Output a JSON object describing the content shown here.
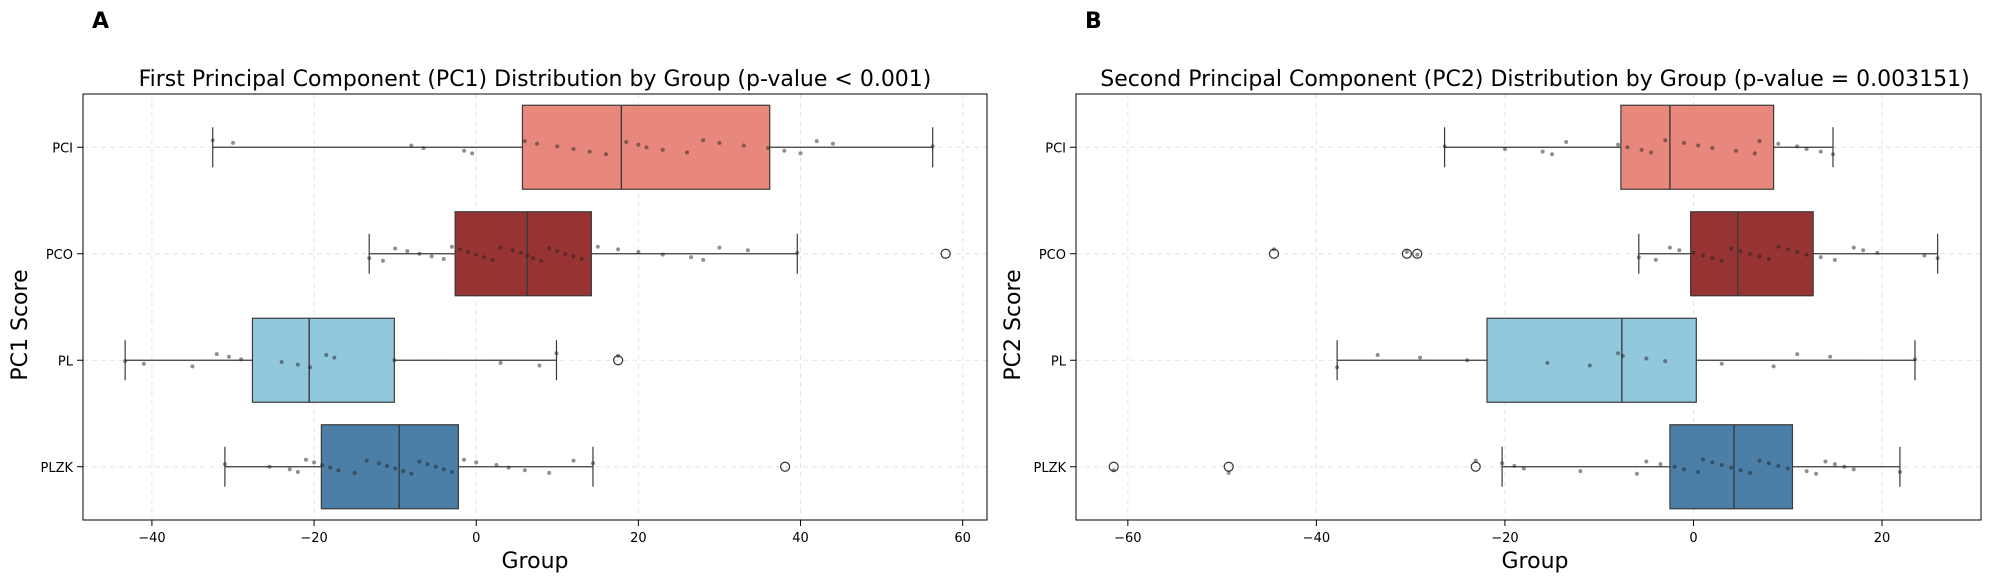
{
  "panels": [
    {
      "letter": "A",
      "chart_data": {
        "type": "box",
        "orientation": "horizontal",
        "title": "First Principal Component (PC1) Distribution by Group (p-value < 0.001)",
        "xlabel": "Group",
        "ylabel": "PC1 Score",
        "xlim": [
          -48.5,
          63
        ],
        "xticks": [
          -40,
          -20,
          0,
          20,
          40,
          60
        ],
        "xtick_labels": [
          "−40",
          "−20",
          "0",
          "20",
          "40",
          "60"
        ],
        "grid": true,
        "categories": [
          "PCI",
          "PCO",
          "PL",
          "PLZK"
        ],
        "colors": [
          "#e8887d",
          "#973333",
          "#92c8de",
          "#4b7fa8"
        ],
        "boxes": [
          {
            "group": "PCI",
            "whisker_low": -32.5,
            "q1": 5.7,
            "median": 17.9,
            "q3": 36.2,
            "whisker_high": 56.3,
            "outliers": []
          },
          {
            "group": "PCO",
            "whisker_low": -13.2,
            "q1": -2.6,
            "median": 6.3,
            "q3": 14.2,
            "whisker_high": 39.6,
            "outliers": [
              57.9
            ]
          },
          {
            "group": "PL",
            "whisker_low": -43.3,
            "q1": -27.6,
            "median": -20.6,
            "q3": -10.1,
            "whisker_high": 9.9,
            "outliers": [
              17.5
            ]
          },
          {
            "group": "PLZK",
            "whisker_low": -31.0,
            "q1": -19.1,
            "median": -9.5,
            "q3": -2.2,
            "whisker_high": 14.4,
            "outliers": [
              38.1
            ]
          }
        ],
        "points": [
          {
            "group": "PCI",
            "values": [
              -32.5,
              -30,
              -8,
              -6.5,
              -1.5,
              -0.5,
              6,
              7.5,
              10,
              12,
              14,
              16,
              18.5,
              20,
              21,
              23,
              26,
              28,
              30,
              33,
              36,
              38,
              40,
              42,
              44,
              56.3
            ]
          },
          {
            "group": "PCO",
            "values": [
              -13.2,
              -11.5,
              -10,
              -8.5,
              -7,
              -5.5,
              -4,
              -3,
              -2,
              -1,
              0,
              1,
              2,
              3,
              4.5,
              5.5,
              6.3,
              7,
              8,
              9,
              10,
              11,
              12,
              13,
              15,
              17.5,
              20,
              23,
              26.5,
              28,
              30,
              33.5,
              39.6
            ]
          },
          {
            "group": "PL",
            "values": [
              -43.3,
              -41,
              -35,
              -32,
              -30.5,
              -29,
              -24,
              -22,
              -20.5,
              -18.5,
              -17.5,
              -10.1,
              3,
              7.8,
              9.9,
              17.5
            ]
          },
          {
            "group": "PLZK",
            "values": [
              -31,
              -25.5,
              -23,
              -22,
              -21,
              -20,
              -19,
              -18,
              -17,
              -15,
              -13.5,
              -12,
              -11,
              -10,
              -9,
              -8,
              -7,
              -6,
              -5,
              -4,
              -3,
              -1.5,
              0,
              2.5,
              4,
              6,
              9,
              12,
              14.4
            ]
          }
        ]
      }
    },
    {
      "letter": "B",
      "chart_data": {
        "type": "box",
        "orientation": "horizontal",
        "title": "Second Principal Component (PC2) Distribution by Group (p-value = 0.003151)",
        "xlabel": "Group",
        "ylabel": "PC2 Score",
        "xlim": [
          -65.5,
          30.5
        ],
        "xticks": [
          -60,
          -40,
          -20,
          0,
          20
        ],
        "xtick_labels": [
          "−60",
          "−40",
          "−20",
          "0",
          "20"
        ],
        "grid": true,
        "categories": [
          "PCI",
          "PCO",
          "PL",
          "PLZK"
        ],
        "colors": [
          "#e8887d",
          "#973333",
          "#92c8de",
          "#4b7fa8"
        ],
        "boxes": [
          {
            "group": "PCI",
            "whisker_low": -26.4,
            "q1": -7.7,
            "median": -2.5,
            "q3": 8.5,
            "whisker_high": 14.8,
            "outliers": []
          },
          {
            "group": "PCO",
            "whisker_low": -5.8,
            "q1": -0.3,
            "median": 4.7,
            "q3": 12.7,
            "whisker_high": 25.9,
            "outliers": [
              -44.5,
              -30.4,
              -29.3
            ]
          },
          {
            "group": "PL",
            "whisker_low": -37.8,
            "q1": -21.9,
            "median": -7.6,
            "q3": 0.3,
            "whisker_high": 23.5,
            "outliers": []
          },
          {
            "group": "PLZK",
            "whisker_low": -20.3,
            "q1": -2.5,
            "median": 4.3,
            "q3": 10.5,
            "whisker_high": 21.9,
            "outliers": [
              -61.5,
              -49.3,
              -23.1
            ]
          }
        ],
        "points": [
          {
            "group": "PCI",
            "values": [
              -26.4,
              -20,
              -16,
              -15,
              -13.5,
              -8,
              -7,
              -5.5,
              -4.5,
              -3,
              -1,
              0.5,
              2,
              4.5,
              6.5,
              7,
              9,
              11,
              12,
              13.5,
              14.8
            ]
          },
          {
            "group": "PCO",
            "values": [
              -44.5,
              -30.4,
              -29.3,
              -5.8,
              -4,
              -2.5,
              -1.5,
              0,
              1,
              2,
              3,
              4,
              5,
              6,
              7,
              8,
              9,
              10,
              11,
              12,
              13.5,
              15,
              17,
              18,
              19.5,
              24.5,
              25.9
            ]
          },
          {
            "group": "PL",
            "values": [
              -37.8,
              -33.5,
              -29,
              -24,
              -15.5,
              -11,
              -8,
              -7.5,
              -5,
              -3,
              3,
              8.5,
              11,
              14.5,
              23.5
            ]
          },
          {
            "group": "PLZK",
            "values": [
              -61.5,
              -49.3,
              -23.1,
              -20.3,
              -19,
              -18,
              -12,
              -6,
              -5,
              -3.5,
              -2,
              -1,
              0.5,
              1,
              2,
              3,
              4,
              5,
              6,
              7,
              8,
              9,
              10,
              12,
              13,
              14,
              15,
              16,
              17,
              21.9
            ]
          }
        ]
      }
    }
  ]
}
